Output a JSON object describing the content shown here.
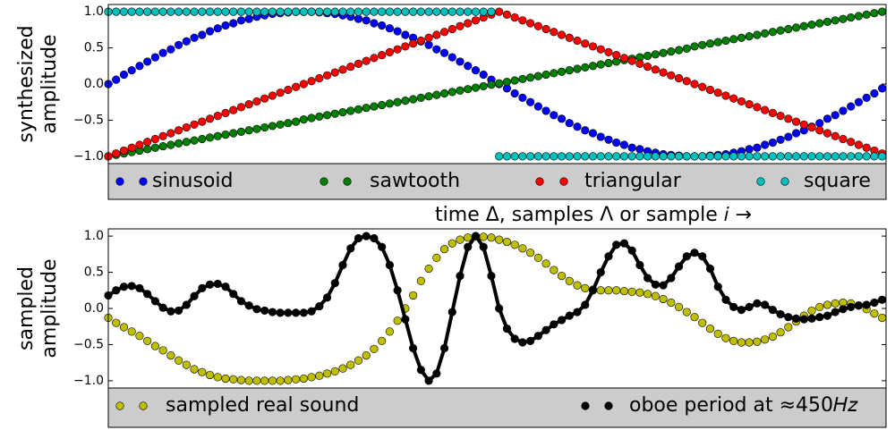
{
  "chart_data": [
    {
      "type": "scatter",
      "ylabel": [
        "synthesized",
        "amplitude"
      ],
      "xlabel": "time Δ, samples Λ or sample 𝑖 →",
      "legend": "below",
      "xlim": [
        0,
        99.5
      ],
      "ylim": [
        -1.1,
        1.1
      ],
      "yticks": [
        {
          "value": -1,
          "label": "−1.0"
        },
        {
          "value": -0.5,
          "label": "−0.5"
        },
        {
          "value": 0,
          "label": "0.0"
        },
        {
          "value": 0.5,
          "label": "0.5"
        },
        {
          "value": 1,
          "label": "1.0"
        }
      ],
      "x": [
        0,
        1,
        2,
        3,
        4,
        5,
        6,
        7,
        8,
        9,
        10,
        11,
        12,
        13,
        14,
        15,
        16,
        17,
        18,
        19,
        20,
        21,
        22,
        23,
        24,
        25,
        26,
        27,
        28,
        29,
        30,
        31,
        32,
        33,
        34,
        35,
        36,
        37,
        38,
        39,
        40,
        41,
        42,
        43,
        44,
        45,
        46,
        47,
        48,
        49,
        50,
        51,
        52,
        53,
        54,
        55,
        56,
        57,
        58,
        59,
        60,
        61,
        62,
        63,
        64,
        65,
        66,
        67,
        68,
        69,
        70,
        71,
        72,
        73,
        74,
        75,
        76,
        77,
        78,
        79,
        80,
        81,
        82,
        83,
        84,
        85,
        86,
        87,
        88,
        89,
        90,
        91,
        92,
        93,
        94,
        95,
        96,
        97,
        98,
        99
      ],
      "series": [
        {
          "name": "sinusoid",
          "color": "#0000ff",
          "line": false,
          "values": [
            0,
            0.06,
            0.13,
            0.19,
            0.25,
            0.31,
            0.37,
            0.43,
            0.48,
            0.54,
            0.59,
            0.64,
            0.68,
            0.73,
            0.77,
            0.81,
            0.84,
            0.88,
            0.9,
            0.93,
            0.95,
            0.97,
            0.98,
            0.99,
            1,
            1,
            1,
            0.99,
            0.98,
            0.97,
            0.95,
            0.93,
            0.9,
            0.88,
            0.84,
            0.81,
            0.77,
            0.73,
            0.68,
            0.64,
            0.59,
            0.54,
            0.48,
            0.43,
            0.37,
            0.31,
            0.25,
            0.19,
            0.13,
            0.06,
            0,
            -0.06,
            -0.13,
            -0.19,
            -0.25,
            -0.31,
            -0.37,
            -0.43,
            -0.48,
            -0.54,
            -0.59,
            -0.64,
            -0.68,
            -0.73,
            -0.77,
            -0.81,
            -0.84,
            -0.88,
            -0.9,
            -0.93,
            -0.95,
            -0.97,
            -0.98,
            -0.99,
            -1,
            -1,
            -1,
            -0.99,
            -0.98,
            -0.97,
            -0.95,
            -0.93,
            -0.9,
            -0.88,
            -0.84,
            -0.81,
            -0.77,
            -0.73,
            -0.68,
            -0.64,
            -0.59,
            -0.54,
            -0.48,
            -0.43,
            -0.37,
            -0.31,
            -0.25,
            -0.19,
            -0.13,
            -0.06
          ]
        },
        {
          "name": "sawtooth",
          "color": "#008000",
          "line": false,
          "values": [
            -1,
            -0.98,
            -0.96,
            -0.94,
            -0.92,
            -0.9,
            -0.88,
            -0.86,
            -0.84,
            -0.82,
            -0.8,
            -0.78,
            -0.76,
            -0.74,
            -0.72,
            -0.7,
            -0.68,
            -0.66,
            -0.64,
            -0.62,
            -0.6,
            -0.58,
            -0.56,
            -0.54,
            -0.52,
            -0.49,
            -0.47,
            -0.45,
            -0.43,
            -0.41,
            -0.39,
            -0.37,
            -0.35,
            -0.33,
            -0.31,
            -0.29,
            -0.27,
            -0.25,
            -0.23,
            -0.21,
            -0.19,
            -0.17,
            -0.15,
            -0.13,
            -0.11,
            -0.09,
            -0.07,
            -0.05,
            -0.03,
            -0.01,
            0.01,
            0.03,
            0.05,
            0.07,
            0.09,
            0.11,
            0.13,
            0.15,
            0.17,
            0.19,
            0.21,
            0.23,
            0.25,
            0.27,
            0.29,
            0.31,
            0.33,
            0.35,
            0.37,
            0.39,
            0.41,
            0.43,
            0.45,
            0.47,
            0.49,
            0.52,
            0.54,
            0.56,
            0.58,
            0.6,
            0.62,
            0.64,
            0.66,
            0.68,
            0.7,
            0.72,
            0.74,
            0.76,
            0.78,
            0.8,
            0.82,
            0.84,
            0.86,
            0.88,
            0.9,
            0.92,
            0.94,
            0.96,
            0.98,
            1
          ]
        },
        {
          "name": "triangular",
          "color": "#ff0000",
          "line": false,
          "values": [
            -1,
            -0.96,
            -0.92,
            -0.88,
            -0.84,
            -0.8,
            -0.76,
            -0.72,
            -0.68,
            -0.64,
            -0.6,
            -0.56,
            -0.52,
            -0.48,
            -0.44,
            -0.4,
            -0.36,
            -0.32,
            -0.28,
            -0.24,
            -0.2,
            -0.16,
            -0.12,
            -0.08,
            -0.04,
            0,
            0.04,
            0.08,
            0.12,
            0.16,
            0.2,
            0.24,
            0.28,
            0.32,
            0.36,
            0.4,
            0.44,
            0.48,
            0.52,
            0.56,
            0.6,
            0.64,
            0.68,
            0.72,
            0.76,
            0.8,
            0.84,
            0.88,
            0.92,
            0.96,
            1,
            0.96,
            0.92,
            0.88,
            0.84,
            0.8,
            0.76,
            0.72,
            0.68,
            0.64,
            0.6,
            0.56,
            0.52,
            0.48,
            0.44,
            0.4,
            0.36,
            0.32,
            0.28,
            0.24,
            0.2,
            0.16,
            0.12,
            0.08,
            0.04,
            0,
            -0.04,
            -0.08,
            -0.12,
            -0.16,
            -0.2,
            -0.24,
            -0.28,
            -0.32,
            -0.36,
            -0.4,
            -0.44,
            -0.48,
            -0.52,
            -0.56,
            -0.6,
            -0.64,
            -0.68,
            -0.72,
            -0.76,
            -0.8,
            -0.84,
            -0.88,
            -0.92,
            -0.96
          ]
        },
        {
          "name": "square",
          "color": "#00bfbf",
          "line": false,
          "values": [
            1,
            1,
            1,
            1,
            1,
            1,
            1,
            1,
            1,
            1,
            1,
            1,
            1,
            1,
            1,
            1,
            1,
            1,
            1,
            1,
            1,
            1,
            1,
            1,
            1,
            1,
            1,
            1,
            1,
            1,
            1,
            1,
            1,
            1,
            1,
            1,
            1,
            1,
            1,
            1,
            1,
            1,
            1,
            1,
            1,
            1,
            1,
            1,
            1,
            1,
            -1,
            -1,
            -1,
            -1,
            -1,
            -1,
            -1,
            -1,
            -1,
            -1,
            -1,
            -1,
            -1,
            -1,
            -1,
            -1,
            -1,
            -1,
            -1,
            -1,
            -1,
            -1,
            -1,
            -1,
            -1,
            -1,
            -1,
            -1,
            -1,
            -1,
            -1,
            -1,
            -1,
            -1,
            -1,
            -1,
            -1,
            -1,
            -1,
            -1,
            -1,
            -1,
            -1,
            -1,
            -1,
            -1,
            -1,
            -1,
            -1,
            -1
          ]
        }
      ]
    },
    {
      "type": "scatter",
      "ylabel": [
        "sampled",
        "amplitude"
      ],
      "legend": "below",
      "xlim": [
        0,
        99.5
      ],
      "ylim": [
        -1.1,
        1.1
      ],
      "yticks": [
        {
          "value": -1,
          "label": "−1.0"
        },
        {
          "value": -0.5,
          "label": "−0.5"
        },
        {
          "value": 0,
          "label": "0.0"
        },
        {
          "value": 0.5,
          "label": "0.5"
        },
        {
          "value": 1,
          "label": "1.0"
        }
      ],
      "x": [
        0,
        1,
        2,
        3,
        4,
        5,
        6,
        7,
        8,
        9,
        10,
        11,
        12,
        13,
        14,
        15,
        16,
        17,
        18,
        19,
        20,
        21,
        22,
        23,
        24,
        25,
        26,
        27,
        28,
        29,
        30,
        31,
        32,
        33,
        34,
        35,
        36,
        37,
        38,
        39,
        40,
        41,
        42,
        43,
        44,
        45,
        46,
        47,
        48,
        49,
        50,
        51,
        52,
        53,
        54,
        55,
        56,
        57,
        58,
        59,
        60,
        61,
        62,
        63,
        64,
        65,
        66,
        67,
        68,
        69,
        70,
        71,
        72,
        73,
        74,
        75,
        76,
        77,
        78,
        79,
        80,
        81,
        82,
        83,
        84,
        85,
        86,
        87,
        88,
        89,
        90,
        91,
        92,
        93,
        94,
        95,
        96,
        97,
        98,
        99
      ],
      "series": [
        {
          "name": "sampled real sound",
          "color": "#bfbf00",
          "line": false,
          "values": [
            -0.13,
            -0.2,
            -0.26,
            -0.32,
            -0.38,
            -0.45,
            -0.52,
            -0.58,
            -0.65,
            -0.72,
            -0.78,
            -0.84,
            -0.88,
            -0.92,
            -0.95,
            -0.97,
            -0.98,
            -0.99,
            -1,
            -1,
            -1,
            -1,
            -1,
            -0.99,
            -0.98,
            -0.97,
            -0.95,
            -0.93,
            -0.9,
            -0.87,
            -0.83,
            -0.78,
            -0.72,
            -0.65,
            -0.56,
            -0.45,
            -0.32,
            -0.17,
            0,
            0.18,
            0.38,
            0.55,
            0.7,
            0.82,
            0.9,
            0.95,
            0.98,
            1,
            0.99,
            0.98,
            0.95,
            0.92,
            0.88,
            0.83,
            0.77,
            0.7,
            0.62,
            0.53,
            0.45,
            0.38,
            0.32,
            0.28,
            0.26,
            0.25,
            0.25,
            0.25,
            0.24,
            0.23,
            0.22,
            0.2,
            0.17,
            0.13,
            0.08,
            0.02,
            -0.05,
            -0.12,
            -0.2,
            -0.28,
            -0.35,
            -0.41,
            -0.45,
            -0.47,
            -0.47,
            -0.46,
            -0.43,
            -0.39,
            -0.33,
            -0.26,
            -0.18,
            -0.1,
            -0.03,
            0.02,
            0.05,
            0.07,
            0.08,
            0.07,
            0.04,
            -0.01,
            -0.07,
            -0.13
          ]
        },
        {
          "name": "oboe period at ≈450𝐻𝑧",
          "color": "#000000",
          "line": true,
          "values": [
            0.18,
            0.25,
            0.3,
            0.31,
            0.28,
            0.2,
            0.1,
            0.01,
            -0.04,
            -0.03,
            0.05,
            0.17,
            0.28,
            0.33,
            0.34,
            0.3,
            0.2,
            0.1,
            0.04,
            -0.01,
            -0.03,
            -0.05,
            -0.06,
            -0.06,
            -0.06,
            -0.06,
            -0.04,
            0.03,
            0.15,
            0.35,
            0.6,
            0.83,
            0.97,
            1,
            0.97,
            0.85,
            0.6,
            0.25,
            -0.15,
            -0.55,
            -0.85,
            -1,
            -0.9,
            -0.55,
            -0.05,
            0.45,
            0.85,
            1,
            0.85,
            0.45,
            0,
            -0.28,
            -0.42,
            -0.47,
            -0.45,
            -0.38,
            -0.3,
            -0.22,
            -0.16,
            -0.1,
            -0.05,
            0.05,
            0.25,
            0.5,
            0.72,
            0.88,
            0.9,
            0.8,
            0.6,
            0.42,
            0.33,
            0.32,
            0.42,
            0.58,
            0.72,
            0.77,
            0.72,
            0.55,
            0.3,
            0.12,
            0.02,
            -0.02,
            0.02,
            0.07,
            0.05,
            -0.02,
            -0.08,
            -0.12,
            -0.14,
            -0.15,
            -0.14,
            -0.12,
            -0.1,
            -0.05,
            -0.01,
            0.02,
            0.04,
            0.05,
            0.08,
            0.12
          ]
        }
      ]
    }
  ]
}
